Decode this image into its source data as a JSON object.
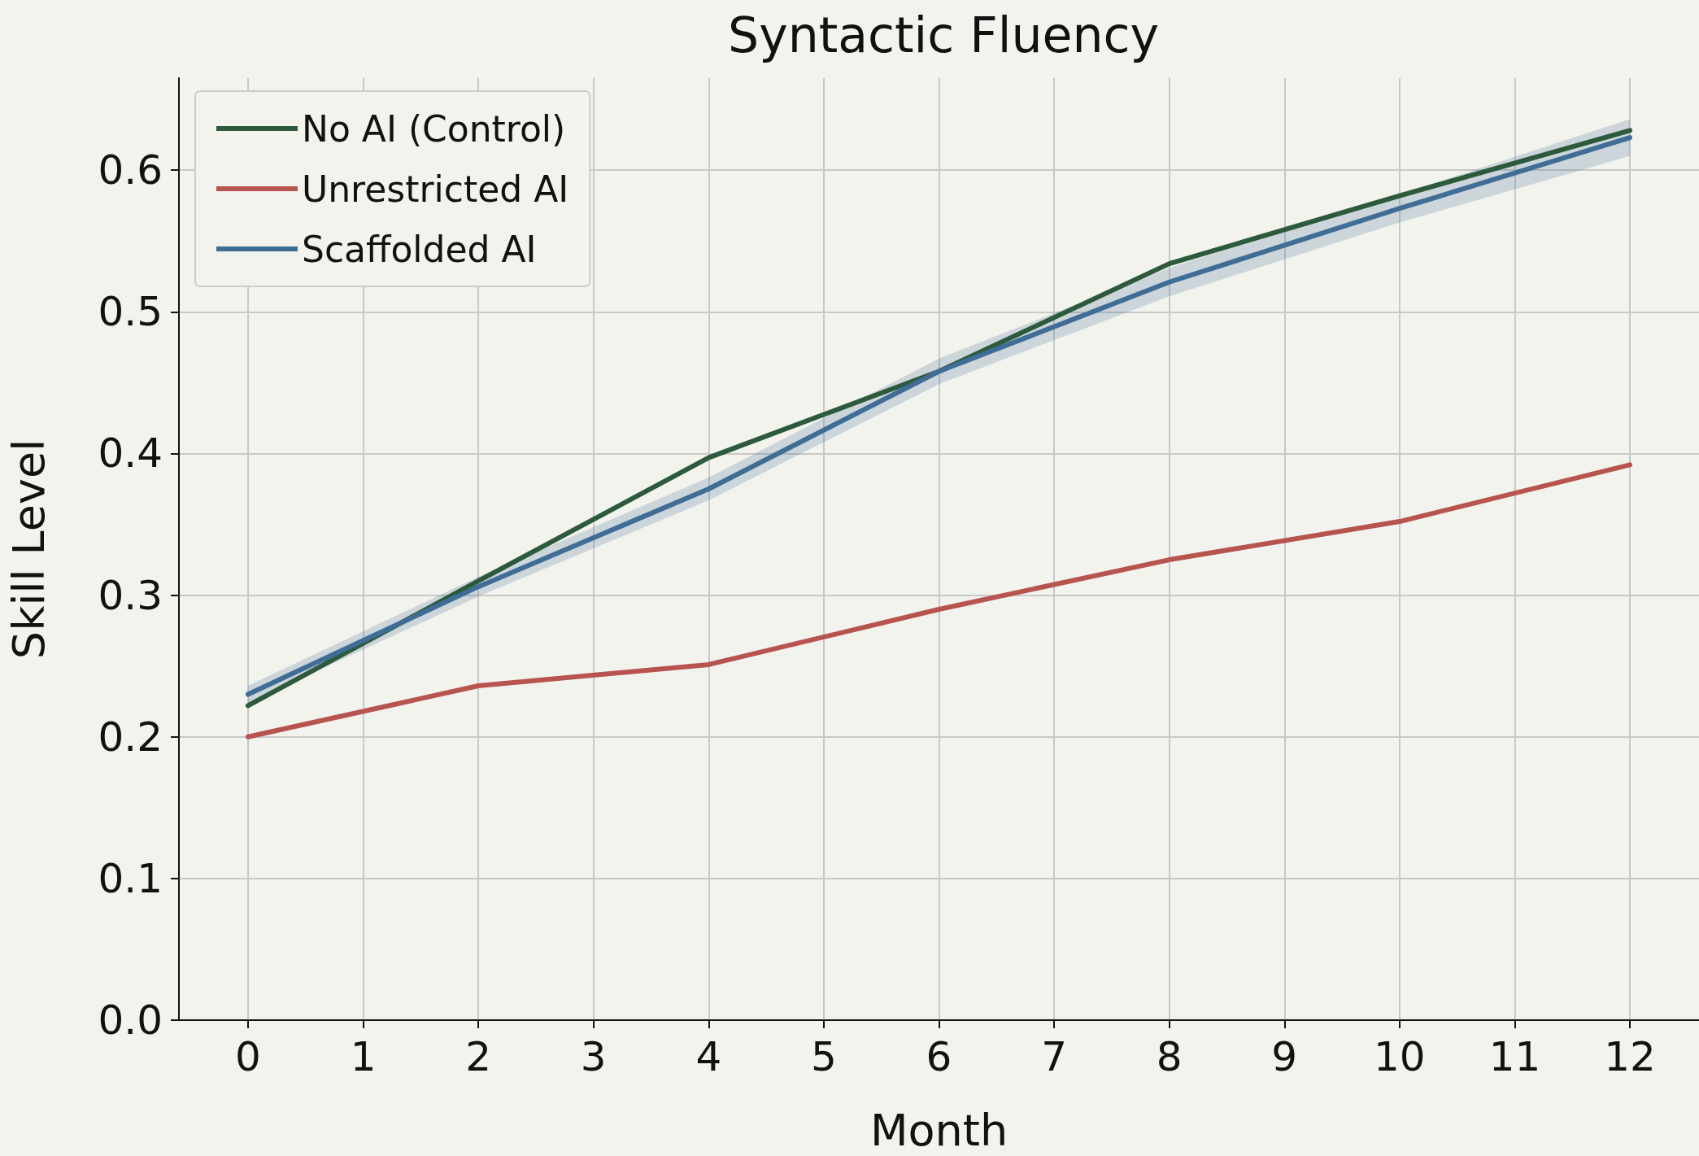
{
  "chart_data": {
    "type": "line",
    "title": "Syntactic Fluency",
    "xlabel": "Month",
    "ylabel": "Skill Level",
    "x": [
      0,
      2,
      4,
      6,
      8,
      10,
      12
    ],
    "series": [
      {
        "name": "No AI (Control)",
        "color": "#2d5a3d",
        "values": [
          0.222,
          0.31,
          0.397,
          0.458,
          0.534,
          0.582,
          0.628
        ]
      },
      {
        "name": "Unrestricted AI",
        "color": "#b85450",
        "values": [
          0.2,
          0.236,
          0.251,
          0.29,
          0.325,
          0.352,
          0.392
        ]
      },
      {
        "name": "Scaffolded AI",
        "color": "#3f6d96",
        "values": [
          0.23,
          0.306,
          0.375,
          0.458,
          0.521,
          0.573,
          0.623
        ],
        "lower": [
          0.224,
          0.299,
          0.367,
          0.449,
          0.511,
          0.563,
          0.61
        ],
        "upper": [
          0.236,
          0.313,
          0.383,
          0.467,
          0.531,
          0.583,
          0.636
        ]
      }
    ],
    "xlim": [
      -0.6,
      12.6
    ],
    "xticks": [
      0,
      1,
      2,
      3,
      4,
      5,
      6,
      7,
      8,
      9,
      10,
      11,
      12
    ],
    "ylim": [
      0,
      0.665
    ],
    "yticks": [
      {
        "value": 0,
        "label": "0.0"
      },
      0.1,
      0.2,
      0.3,
      0.4,
      0.5,
      0.6
    ],
    "grid": true,
    "legend": "top left",
    "marker": "none",
    "line_style": "solid"
  }
}
